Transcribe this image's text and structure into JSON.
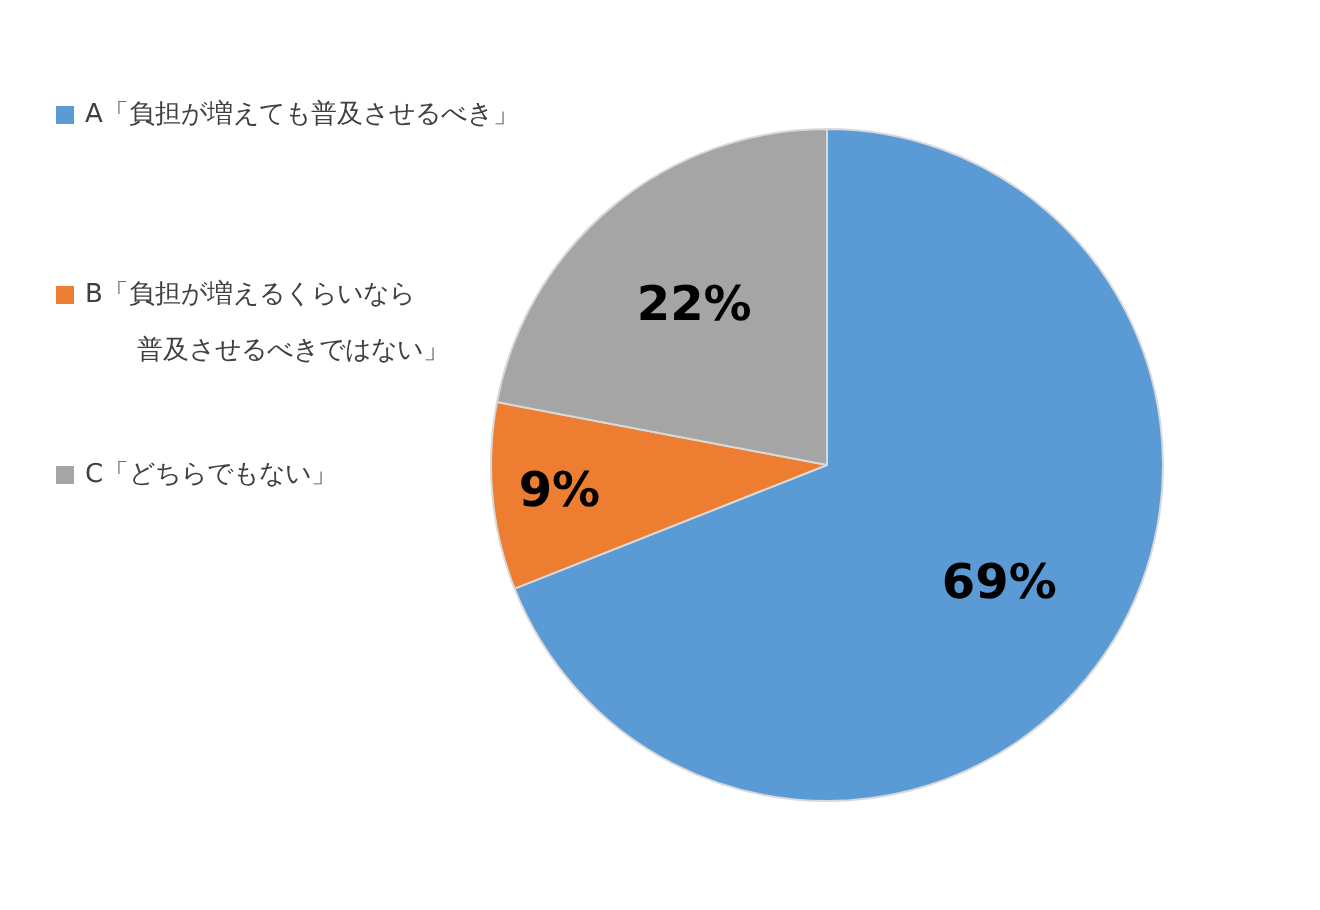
{
  "chart_data": {
    "type": "pie",
    "categories": [
      "A「負担が増えても普及させるべき」",
      "B「負担が増えるくらいなら普及させるべきではない」",
      "C「どちらでもない」"
    ],
    "values": [
      69,
      9,
      22
    ],
    "colors": [
      "#5b9bd5",
      "#ed7d31",
      "#a5a5a5"
    ],
    "value_labels": [
      "69%",
      "9%",
      "22%"
    ],
    "legend": "left"
  }
}
